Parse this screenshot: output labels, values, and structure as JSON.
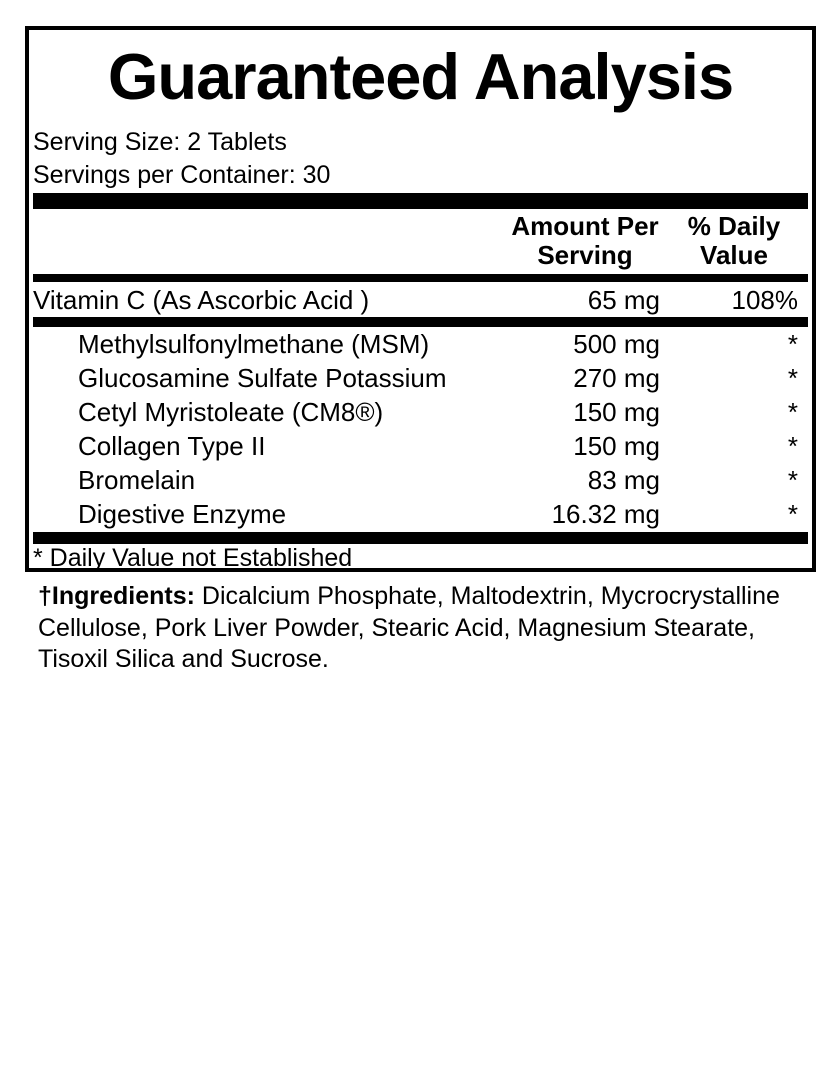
{
  "title": "Guaranteed Analysis",
  "serving": {
    "size": "Serving Size: 2 Tablets",
    "per_container": "Servings per Container: 30"
  },
  "columns": {
    "amount_line1": "Amount Per",
    "amount_line2": "Serving",
    "dv_line1": "% Daily",
    "dv_line2": "Value"
  },
  "primary_row": {
    "name": "Vitamin C (As Ascorbic Acid )",
    "amount": "65 mg",
    "dv": "108%"
  },
  "rows": [
    {
      "name": "Methylsulfonylmethane (MSM)",
      "amount": "500 mg",
      "dv": "*"
    },
    {
      "name": "Glucosamine Sulfate Potassium",
      "amount": "270 mg",
      "dv": "*"
    },
    {
      "name": "Cetyl Myristoleate (CM8®)",
      "amount": "150 mg",
      "dv": "*"
    },
    {
      "name": "Collagen Type II",
      "amount": "150 mg",
      "dv": "*"
    },
    {
      "name": "Bromelain",
      "amount": "83 mg",
      "dv": "*"
    },
    {
      "name": "Digestive Enzyme",
      "amount": "16.32 mg",
      "dv": "*"
    }
  ],
  "footnote": "* Daily Value not Established",
  "ingredients": {
    "label": "†Ingredients:",
    "text": " Dicalcium Phosphate, Maltodextrin, Mycrocrystalline Cellulose, Pork Liver Powder, Stearic Acid, Magnesium Stearate, Tisoxil Silica and Sucrose."
  },
  "colors": {
    "text": "#000000",
    "background": "#ffffff",
    "rule": "#000000"
  }
}
